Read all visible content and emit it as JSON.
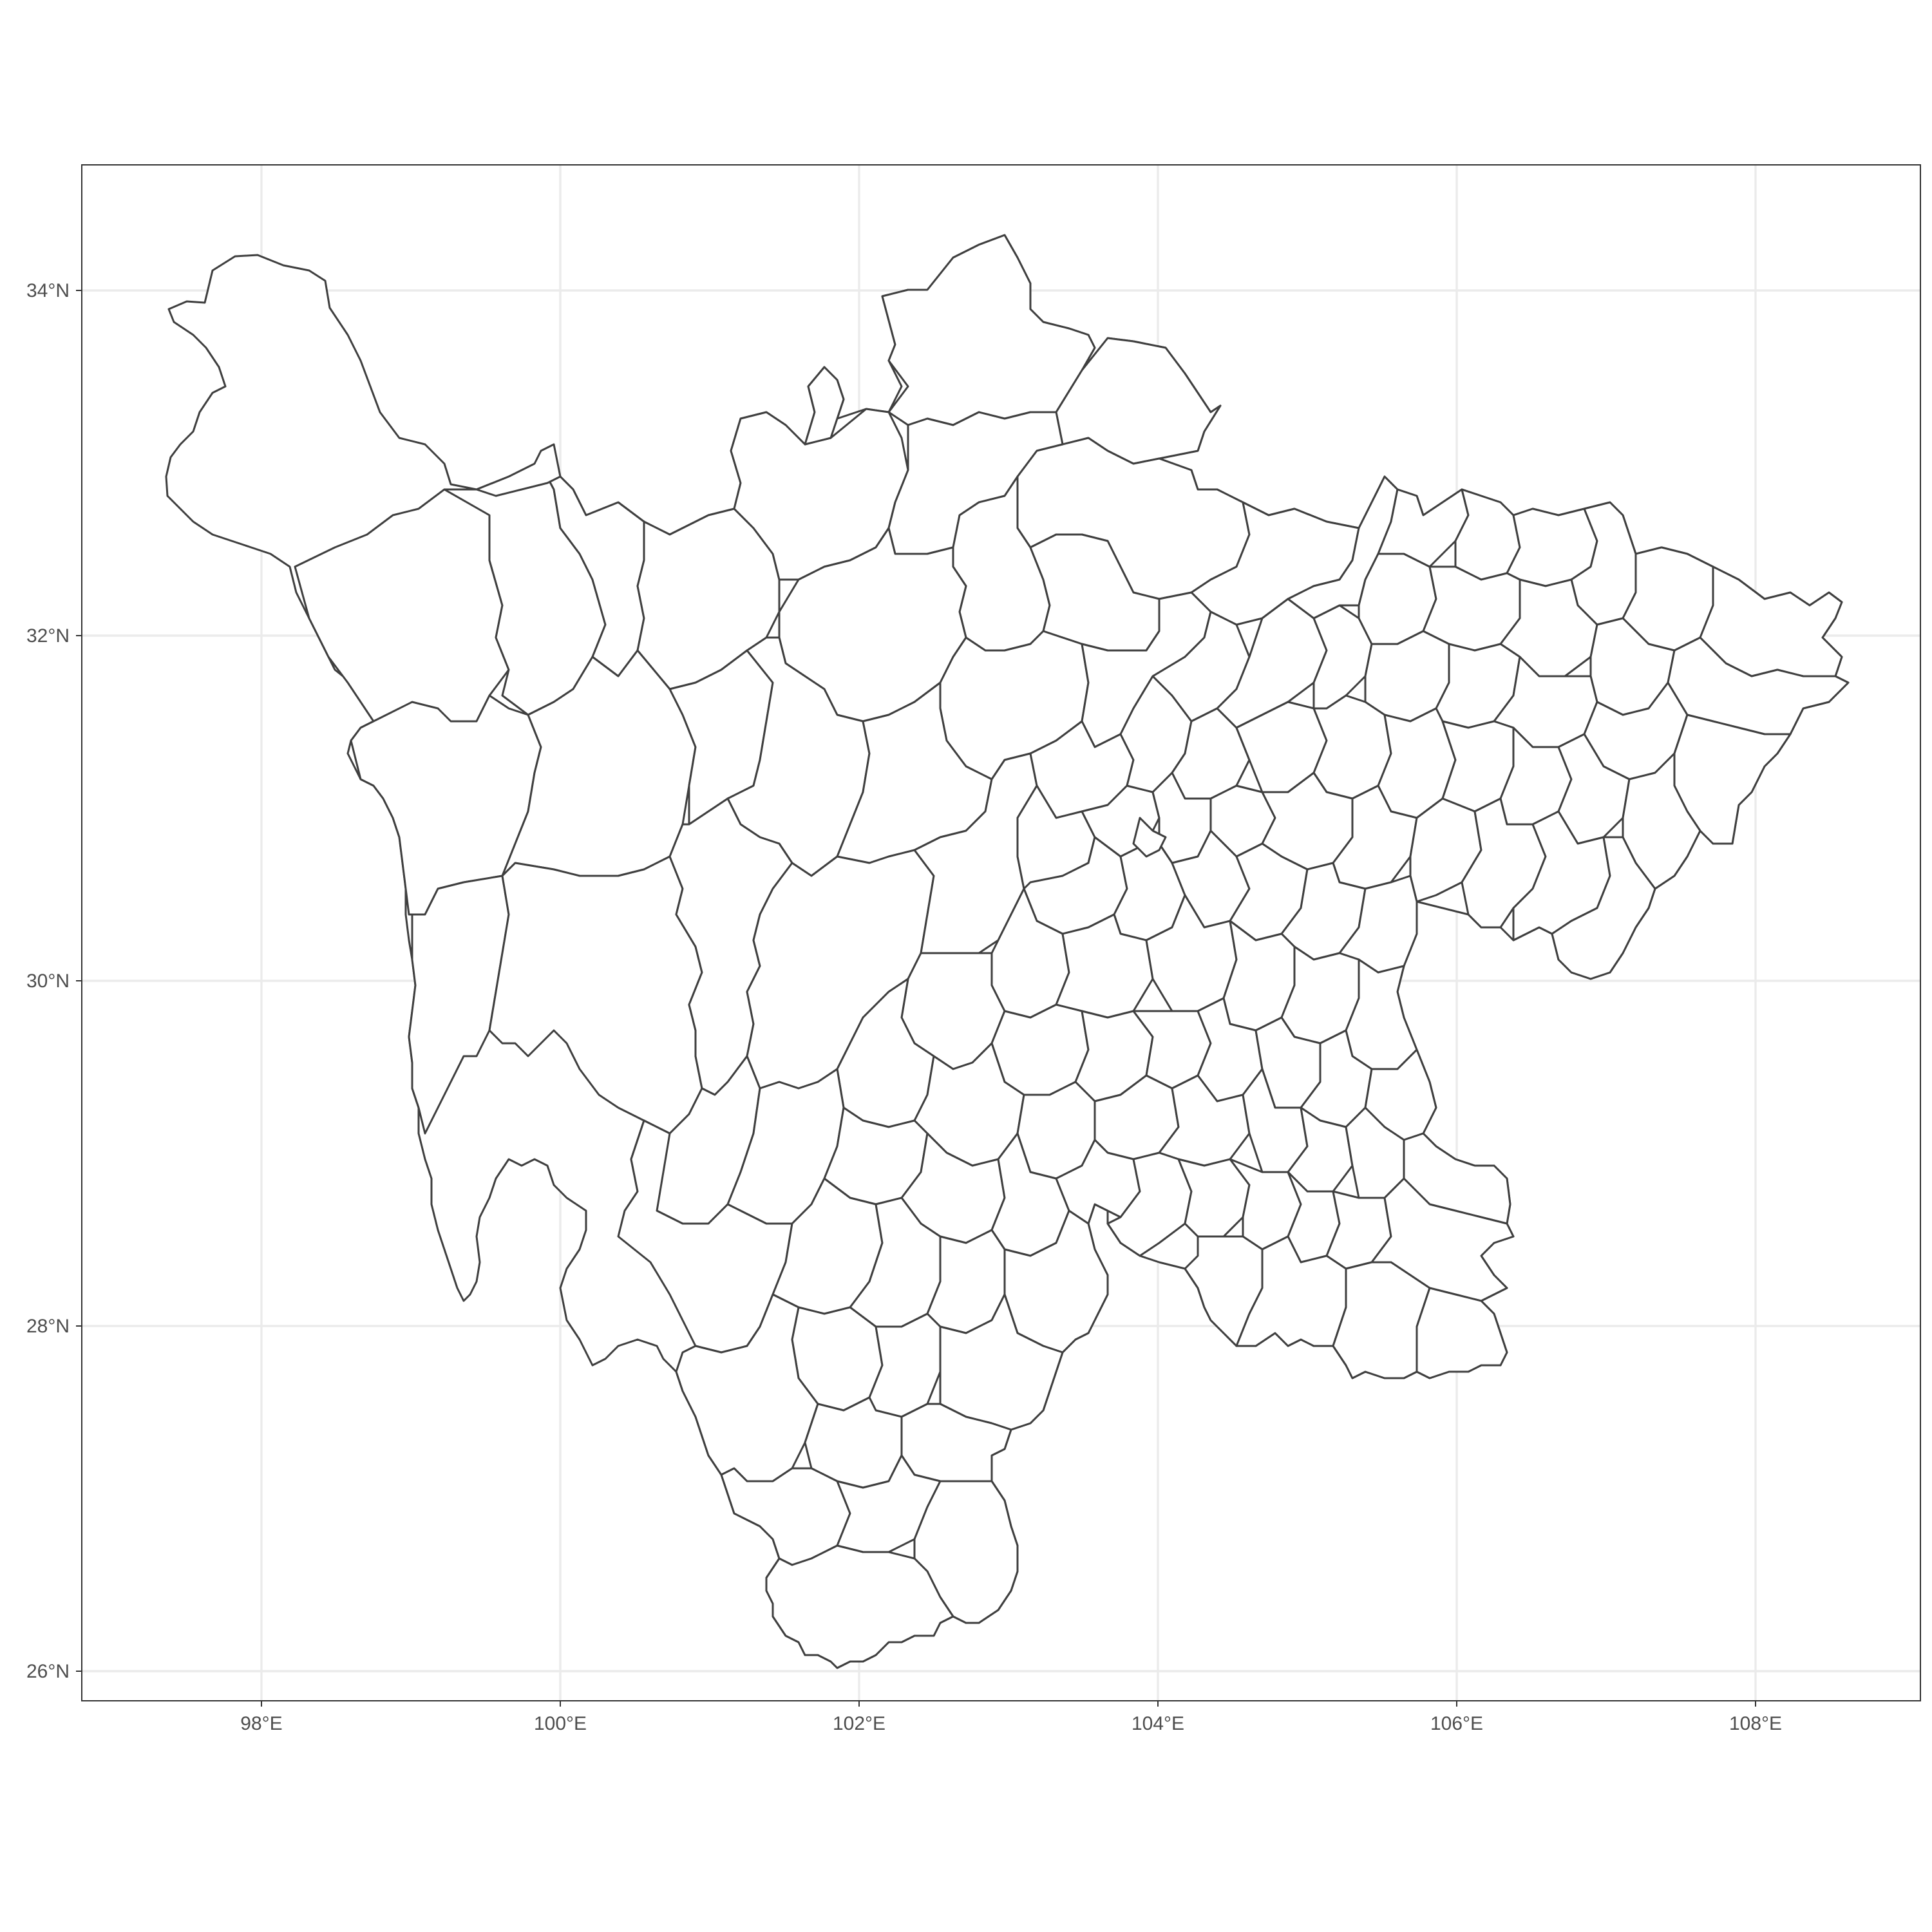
{
  "map": {
    "x_tick_labels": [
      "98°E",
      "100°E",
      "102°E",
      "104°E",
      "106°E",
      "108°E"
    ],
    "y_tick_labels": [
      "34°N",
      "32°N",
      "30°N",
      "28°N",
      "26°N"
    ],
    "colors": {
      "background": "#ffffff",
      "gridline": "#ebebeb",
      "border": "#333333",
      "boundary": "#3f3f3f",
      "text": "#4d4d4d"
    }
  },
  "chart_data": {
    "type": "map",
    "xlim": [
      96.8,
      109.1
    ],
    "ylim": [
      25.6,
      34.7
    ],
    "x_breaks": [
      98,
      100,
      102,
      104,
      106,
      108
    ],
    "y_breaks": [
      34,
      32,
      30,
      28,
      26
    ],
    "grid": true
  }
}
